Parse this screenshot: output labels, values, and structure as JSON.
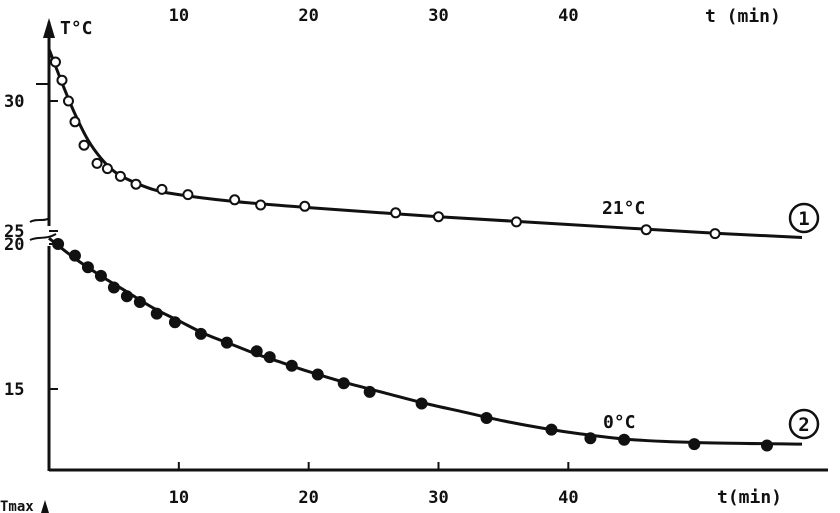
{
  "chart_data": {
    "type": "scatter",
    "title": "",
    "grid": false,
    "top_panel": {
      "y_axis_label": "T°C",
      "x_axis_label": "t (min)",
      "x_ticks": [
        "10",
        "20",
        "30",
        "40"
      ],
      "y_ticks": [
        "30",
        "25"
      ],
      "ylim": [
        24.5,
        32
      ],
      "xlim": [
        0,
        60
      ]
    },
    "bottom_panel": {
      "y_axis_label": "Tmax",
      "x_axis_label": "t(min)",
      "x_ticks": [
        "10",
        "20",
        "30",
        "40"
      ],
      "y_ticks": [
        "20",
        "15"
      ],
      "ylim": [
        12.2,
        20.5
      ],
      "xlim": [
        0,
        60
      ]
    },
    "series": [
      {
        "id": "1",
        "name": "21°C",
        "badge": "1",
        "marker": "open-circle",
        "points": [
          [
            0.5,
            31.5
          ],
          [
            1.0,
            30.8
          ],
          [
            1.5,
            30.0
          ],
          [
            2.0,
            29.2
          ],
          [
            2.7,
            28.3
          ],
          [
            3.7,
            27.6
          ],
          [
            4.5,
            27.4
          ],
          [
            5.5,
            27.1
          ],
          [
            6.7,
            26.8
          ],
          [
            8.7,
            26.6
          ],
          [
            10.7,
            26.4
          ],
          [
            14.3,
            26.2
          ],
          [
            16.3,
            26.0
          ],
          [
            19.7,
            25.95
          ],
          [
            26.7,
            25.7
          ],
          [
            30.0,
            25.55
          ],
          [
            36.0,
            25.35
          ],
          [
            46.0,
            25.05
          ],
          [
            51.3,
            24.9
          ]
        ],
        "curve": [
          [
            0,
            32.0
          ],
          [
            1,
            30.7
          ],
          [
            2,
            29.5
          ],
          [
            3,
            28.5
          ],
          [
            4,
            27.8
          ],
          [
            5,
            27.3
          ],
          [
            6,
            27.0
          ],
          [
            8,
            26.6
          ],
          [
            10,
            26.4
          ],
          [
            14,
            26.15
          ],
          [
            20,
            25.9
          ],
          [
            30,
            25.55
          ],
          [
            40,
            25.25
          ],
          [
            50,
            24.95
          ],
          [
            58,
            24.75
          ]
        ]
      },
      {
        "id": "2",
        "name": "0°C",
        "badge": "2",
        "marker": "filled-circle",
        "points": [
          [
            0.7,
            20.0
          ],
          [
            2.0,
            19.6
          ],
          [
            3.0,
            19.2
          ],
          [
            4.0,
            18.9
          ],
          [
            5.0,
            18.5
          ],
          [
            6.0,
            18.2
          ],
          [
            7.0,
            18.0
          ],
          [
            8.3,
            17.6
          ],
          [
            9.7,
            17.3
          ],
          [
            11.7,
            16.9
          ],
          [
            13.7,
            16.6
          ],
          [
            16.0,
            16.3
          ],
          [
            17.0,
            16.1
          ],
          [
            18.7,
            15.8
          ],
          [
            20.7,
            15.5
          ],
          [
            22.7,
            15.2
          ],
          [
            24.7,
            14.9
          ],
          [
            28.7,
            14.5
          ],
          [
            33.7,
            14.0
          ],
          [
            38.7,
            13.6
          ],
          [
            41.7,
            13.3
          ],
          [
            44.3,
            13.25
          ],
          [
            49.7,
            13.1
          ],
          [
            55.3,
            13.05
          ]
        ],
        "curve": [
          [
            0,
            20.2
          ],
          [
            2,
            19.5
          ],
          [
            4,
            18.9
          ],
          [
            6,
            18.35
          ],
          [
            8,
            17.8
          ],
          [
            10,
            17.35
          ],
          [
            12,
            16.9
          ],
          [
            14,
            16.55
          ],
          [
            16,
            16.2
          ],
          [
            18,
            15.9
          ],
          [
            20,
            15.6
          ],
          [
            23,
            15.2
          ],
          [
            26,
            14.85
          ],
          [
            29,
            14.5
          ],
          [
            32,
            14.2
          ],
          [
            35,
            13.9
          ],
          [
            38,
            13.65
          ],
          [
            41,
            13.45
          ],
          [
            45,
            13.25
          ],
          [
            50,
            13.15
          ],
          [
            58,
            13.1
          ]
        ]
      }
    ]
  }
}
